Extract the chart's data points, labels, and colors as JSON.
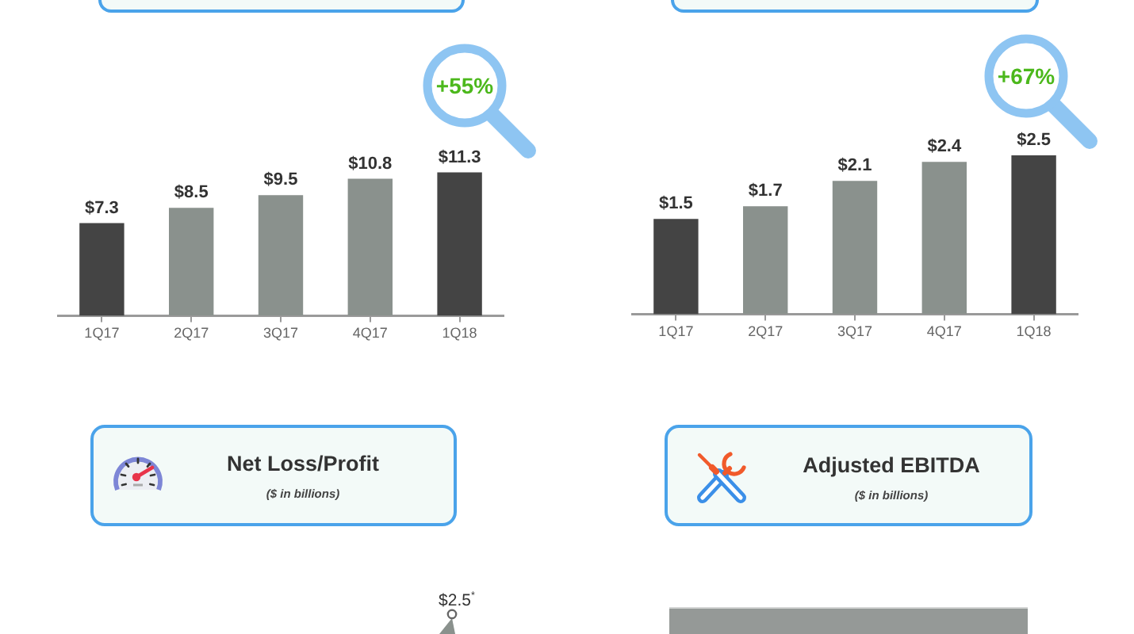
{
  "chart_data": [
    {
      "type": "bar",
      "categories": [
        "1Q17",
        "2Q17",
        "3Q17",
        "4Q17",
        "1Q18"
      ],
      "values": [
        7.3,
        8.5,
        9.5,
        10.8,
        11.3
      ],
      "colors": [
        "#444444",
        "#8a918d",
        "#8a918d",
        "#8a918d",
        "#444444"
      ],
      "value_labels": [
        "$7.3",
        "$8.5",
        "$9.5",
        "$10.8",
        "$11.3"
      ],
      "tick_labels": "x",
      "annotations": [
        "+55%"
      ]
    },
    {
      "type": "bar",
      "categories": [
        "1Q17",
        "2Q17",
        "3Q17",
        "4Q17",
        "1Q18"
      ],
      "values": [
        1.5,
        1.7,
        2.1,
        2.4,
        2.5
      ],
      "colors": [
        "#444444",
        "#8a918d",
        "#8a918d",
        "#8a918d",
        "#444444"
      ],
      "value_labels": [
        "$1.5",
        "$1.7",
        "$2.1",
        "$2.4",
        "$2.5"
      ],
      "tick_labels": "x",
      "annotations": [
        "+67%"
      ]
    },
    {
      "type": "other",
      "title": "Net Loss/Profit",
      "subtitle": "($ in billions)",
      "annotations": [
        "$2.5$^{*}$"
      ]
    },
    {
      "type": "other",
      "title": "Adjusted EBITDA",
      "subtitle": "($ in billions)"
    }
  ]
}
